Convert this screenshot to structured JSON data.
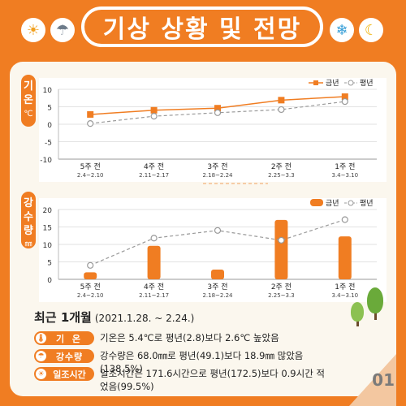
{
  "header": {
    "title": "기상 상황 및 전망"
  },
  "icons": [
    "sun-icon",
    "rain-cloud-icon",
    "snowflake-icon",
    "moon-cloud-icon"
  ],
  "colors": {
    "accent": "#f07d22",
    "average": "#999999",
    "panel": "#fbf7ee"
  },
  "side_tabs": {
    "temp": {
      "chars": [
        "기",
        "온"
      ],
      "unit": "℃"
    },
    "rain": {
      "chars": [
        "강",
        "수",
        "량"
      ],
      "unit": "㎜"
    }
  },
  "chart_data": [
    {
      "type": "line",
      "name": "temperature",
      "categories": [
        "5주 전",
        "4주 전",
        "3주 전",
        "2주 전",
        "1주 전"
      ],
      "dates": [
        "2.4~2.10",
        "2.11~2.17",
        "2.18~2.24",
        "2.25~3.3",
        "3.4~3.10"
      ],
      "ylim": [
        -10,
        10
      ],
      "yticks": [
        -10,
        -5,
        0,
        5,
        10
      ],
      "series": [
        {
          "name": "금년",
          "values": [
            2.8,
            4.0,
            4.6,
            6.9,
            7.9
          ]
        },
        {
          "name": "평년",
          "values": [
            0.2,
            2.3,
            3.3,
            4.2,
            6.5
          ]
        }
      ],
      "legend": "top-right"
    },
    {
      "type": "bar",
      "name": "precipitation",
      "categories": [
        "5주 전",
        "4주 전",
        "3주 전",
        "2주 전",
        "1주 전"
      ],
      "dates": [
        "2.4~2.10",
        "2.11~2.17",
        "2.18~2.24",
        "2.25~3.3",
        "3.4~3.10"
      ],
      "ylim": [
        0,
        20
      ],
      "yticks": [
        0,
        5,
        10,
        15,
        20
      ],
      "series": [
        {
          "name": "금년",
          "values": [
            2.0,
            9.6,
            2.8,
            17.0,
            12.3
          ]
        },
        {
          "name": "평년",
          "values": [
            4.0,
            11.8,
            14.0,
            11.2,
            17.1
          ]
        }
      ],
      "legend": "top-right"
    }
  ],
  "summary": {
    "title": "최근 1개월",
    "period": "(2021.1.28. ~ 2.24.)",
    "rows": [
      {
        "icon": "thermometer-icon",
        "label": "기 온",
        "text": "기온은 5.4℃로 평년(2.8)보다 2.6℃ 높았음"
      },
      {
        "icon": "umbrella-icon",
        "label": "강수량",
        "text": "강수량은 68.0㎜로 평년(49.1)보다 18.9㎜ 많았음(138.5%)"
      },
      {
        "icon": "sun-small-icon",
        "label": "일조시간",
        "text": "일조시간은 171.6시간으로 평년(172.5)보다 0.9시간 적었음(99.5%)"
      }
    ]
  },
  "page": {
    "number": "01"
  }
}
